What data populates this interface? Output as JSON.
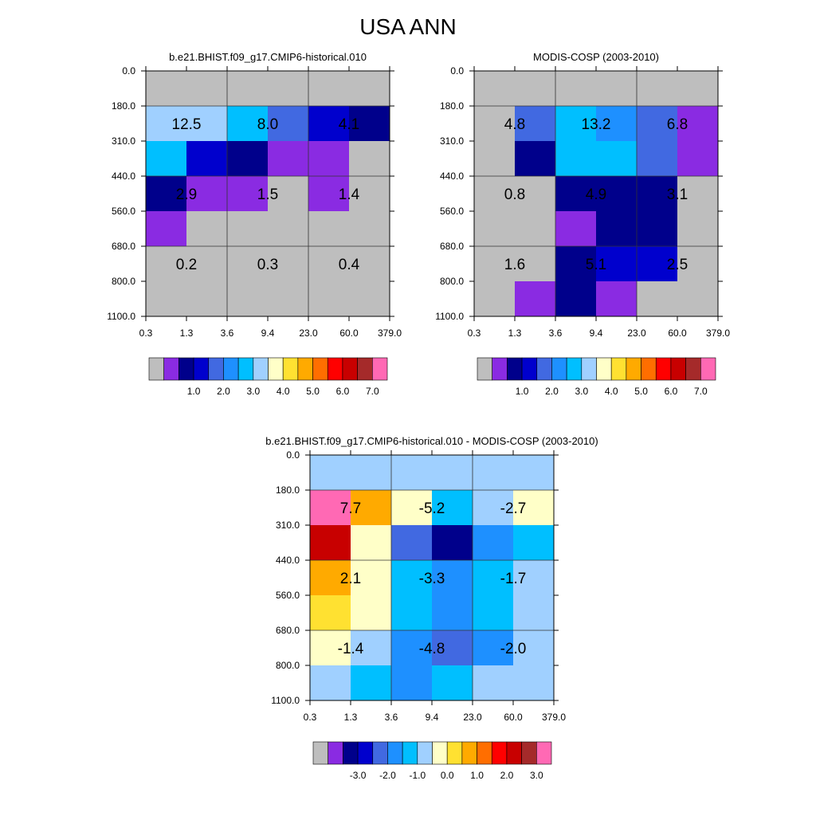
{
  "figure_title": "USA ANN",
  "palettes": {
    "abs": [
      "#BEBEBE",
      "#8A2BE2",
      "#00008B",
      "#0000CD",
      "#4169E1",
      "#1E90FF",
      "#00BFFF",
      "#A0D0FF",
      "#FFFFC8",
      "#FFE131",
      "#FFAA00",
      "#FF6E00",
      "#FF0000",
      "#C80000",
      "#A52A2A",
      "#FF69B4"
    ],
    "diff": [
      "#BEBEBE",
      "#8A2BE2",
      "#00008B",
      "#0000CD",
      "#4169E1",
      "#1E90FF",
      "#00BFFF",
      "#A0D0FF",
      "#FFFFC8",
      "#FFE131",
      "#FFAA00",
      "#FF6E00",
      "#FF0000",
      "#C80000",
      "#A52A2A",
      "#FF69B4"
    ]
  },
  "chart_data": [
    {
      "type": "heatmap",
      "title": "b.e21.BHIST.f09_g17.CMIP6-historical.010",
      "x_ticks": [
        "0.3",
        "1.3",
        "3.6",
        "9.4",
        "23.0",
        "60.0",
        "379.0"
      ],
      "y_ticks": [
        "0.0",
        "180.0",
        "310.0",
        "440.0",
        "560.0",
        "680.0",
        "800.0",
        "1100.0"
      ],
      "palette": "abs",
      "colorbar_labels": [
        "1.0",
        "2.0",
        "3.0",
        "4.0",
        "5.0",
        "6.0",
        "7.0"
      ],
      "cell_colors": [
        [
          0,
          0,
          0,
          0,
          0,
          0
        ],
        [
          7,
          7,
          6,
          4,
          3,
          2
        ],
        [
          6,
          3,
          2,
          1,
          1,
          0
        ],
        [
          2,
          1,
          1,
          0,
          1,
          0
        ],
        [
          1,
          0,
          0,
          0,
          0,
          0
        ],
        [
          0,
          0,
          0,
          0,
          0,
          0
        ],
        [
          0,
          0,
          0,
          0,
          0,
          0
        ]
      ],
      "block_values": [
        [
          "12.5",
          "8.0",
          "4.1"
        ],
        [
          "2.9",
          "1.5",
          "1.4"
        ],
        [
          "0.2",
          "0.3",
          "0.4"
        ]
      ]
    },
    {
      "type": "heatmap",
      "title": "MODIS-COSP (2003-2010)",
      "x_ticks": [
        "0.3",
        "1.3",
        "3.6",
        "9.4",
        "23.0",
        "60.0",
        "379.0"
      ],
      "y_ticks": [
        "0.0",
        "180.0",
        "310.0",
        "440.0",
        "560.0",
        "680.0",
        "800.0",
        "1100.0"
      ],
      "palette": "abs",
      "colorbar_labels": [
        "1.0",
        "2.0",
        "3.0",
        "4.0",
        "5.0",
        "6.0",
        "7.0"
      ],
      "cell_colors": [
        [
          0,
          0,
          0,
          0,
          0,
          0
        ],
        [
          0,
          4,
          6,
          5,
          4,
          1
        ],
        [
          0,
          2,
          6,
          6,
          4,
          1
        ],
        [
          0,
          0,
          2,
          2,
          2,
          0
        ],
        [
          0,
          0,
          1,
          2,
          2,
          0
        ],
        [
          0,
          0,
          2,
          3,
          3,
          0
        ],
        [
          0,
          1,
          2,
          1,
          0,
          0
        ]
      ],
      "block_values": [
        [
          "4.8",
          "13.2",
          "6.8"
        ],
        [
          "0.8",
          "4.9",
          "3.1"
        ],
        [
          "1.6",
          "5.1",
          "2.5"
        ]
      ]
    },
    {
      "type": "heatmap",
      "title": "b.e21.BHIST.f09_g17.CMIP6-historical.010 - MODIS-COSP (2003-2010)",
      "x_ticks": [
        "0.3",
        "1.3",
        "3.6",
        "9.4",
        "23.0",
        "60.0",
        "379.0"
      ],
      "y_ticks": [
        "0.0",
        "180.0",
        "310.0",
        "440.0",
        "560.0",
        "680.0",
        "800.0",
        "1100.0"
      ],
      "palette": "diff",
      "colorbar_labels": [
        "-3.0",
        "-2.0",
        "-1.0",
        "0.0",
        "1.0",
        "2.0",
        "3.0"
      ],
      "cell_colors": [
        [
          7,
          7,
          7,
          7,
          7,
          7
        ],
        [
          15,
          10,
          8,
          6,
          7,
          8
        ],
        [
          13,
          8,
          4,
          2,
          5,
          6
        ],
        [
          10,
          8,
          6,
          5,
          6,
          7
        ],
        [
          9,
          8,
          6,
          5,
          6,
          7
        ],
        [
          8,
          7,
          5,
          4,
          5,
          7
        ],
        [
          7,
          6,
          5,
          6,
          7,
          7
        ]
      ],
      "block_values": [
        [
          "7.7",
          "-5.2",
          "-2.7"
        ],
        [
          "2.1",
          "-3.3",
          "-1.7"
        ],
        [
          "-1.4",
          "-4.8",
          "-2.0"
        ]
      ]
    }
  ]
}
